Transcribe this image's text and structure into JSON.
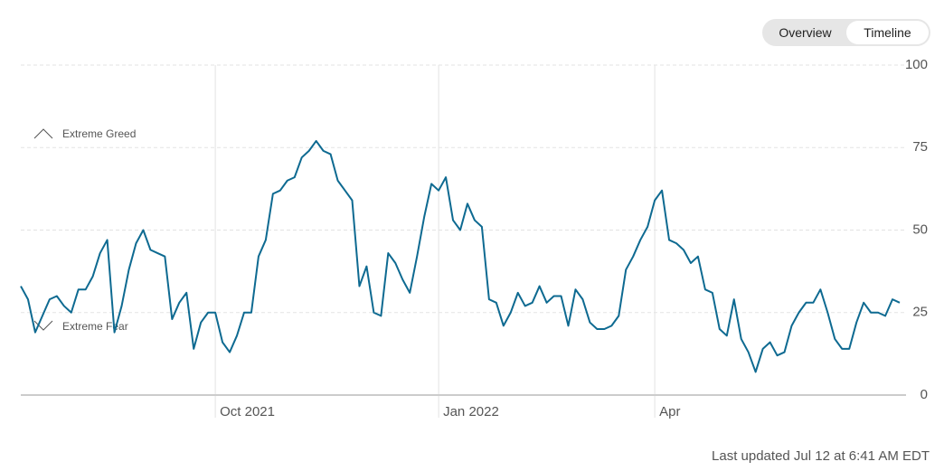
{
  "controls": {
    "buttons": [
      "Overview",
      "Timeline"
    ],
    "selected": "Timeline"
  },
  "chart_data": {
    "type": "line",
    "annotations": [
      "Extreme Greed",
      "Extreme Fear"
    ],
    "categories": [
      null,
      null,
      null,
      null,
      null,
      null,
      null,
      null,
      null,
      null,
      null,
      null,
      null,
      null,
      null,
      null,
      null,
      null,
      null,
      null,
      null,
      null,
      null,
      null,
      null,
      null,
      null,
      "Oct 2021",
      null,
      null,
      null,
      null,
      null,
      null,
      null,
      null,
      null,
      null,
      null,
      null,
      null,
      null,
      null,
      null,
      null,
      null,
      null,
      null,
      null,
      null,
      null,
      null,
      null,
      null,
      null,
      null,
      null,
      null,
      "Jan 2022",
      null,
      null,
      null,
      null,
      null,
      null,
      null,
      null,
      null,
      null,
      null,
      null,
      null,
      null,
      null,
      null,
      null,
      null,
      null,
      null,
      null,
      null,
      null,
      null,
      null,
      null,
      null,
      null,
      null,
      "Apr",
      null,
      null,
      null,
      null,
      null,
      null,
      null,
      null,
      null,
      null,
      null,
      null,
      null,
      null,
      null,
      null,
      null,
      null,
      null,
      null,
      null,
      null,
      null,
      null,
      null,
      null,
      null,
      null,
      null,
      null,
      null,
      null,
      null,
      null
    ],
    "values": [
      33,
      29,
      19,
      24,
      29,
      30,
      27,
      25,
      32,
      32,
      36,
      43,
      47,
      19,
      27,
      38,
      46,
      50,
      44,
      43,
      42,
      23,
      28,
      31,
      14,
      22,
      25,
      25,
      16,
      13,
      18,
      25,
      25,
      42,
      47,
      61,
      62,
      65,
      66,
      72,
      74,
      77,
      74,
      73,
      65,
      62,
      59,
      33,
      39,
      25,
      24,
      43,
      40,
      35,
      31,
      42,
      54,
      64,
      62,
      66,
      53,
      50,
      58,
      53,
      51,
      29,
      28,
      21,
      25,
      31,
      27,
      28,
      33,
      28,
      30,
      30,
      21,
      32,
      29,
      22,
      20,
      20,
      21,
      24,
      38,
      42,
      47,
      51,
      59,
      62,
      47,
      46,
      44,
      40,
      42,
      32,
      31,
      20,
      18,
      29,
      17,
      13,
      7,
      14,
      16,
      12,
      13,
      21,
      25,
      28,
      28,
      32,
      25,
      17,
      14,
      14,
      22,
      28,
      25,
      25,
      24,
      29,
      28
    ],
    "color": "#0e6a91",
    "ylim": [
      0,
      100
    ],
    "yticks": [
      0,
      25,
      50,
      75,
      100
    ],
    "grid": true
  },
  "footer": "Last updated Jul 12 at 6:41 AM EDT"
}
